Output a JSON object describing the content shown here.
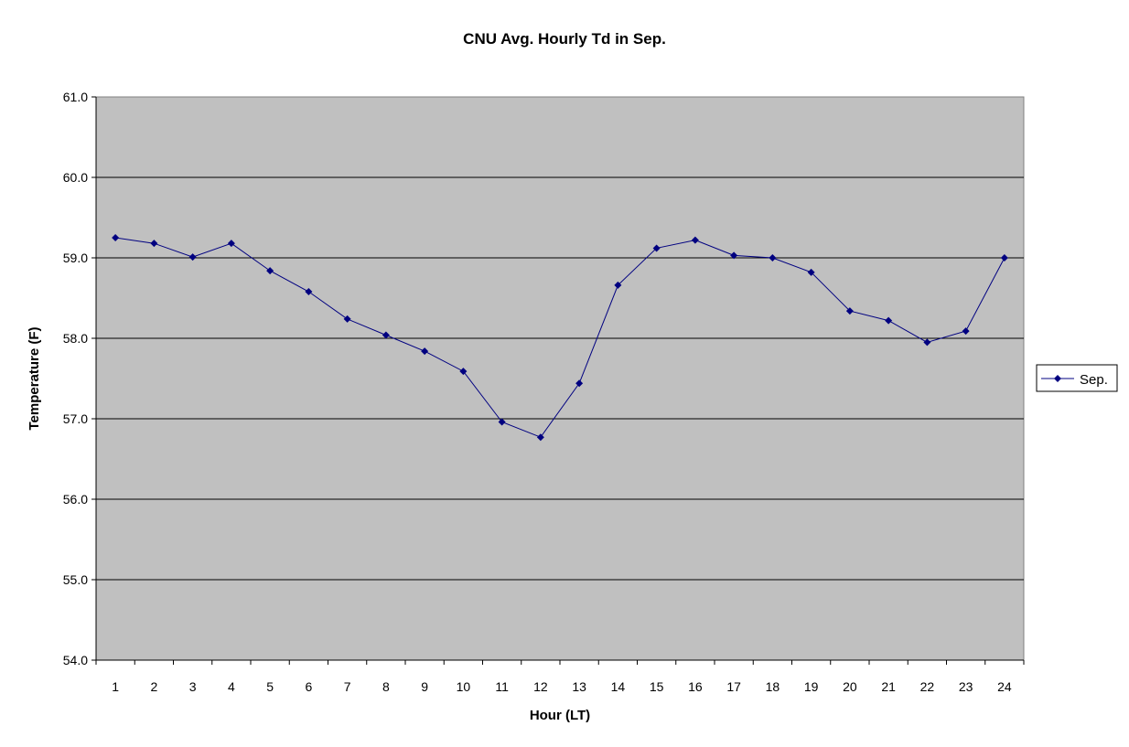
{
  "chart_data": {
    "type": "line",
    "title": "CNU Avg. Hourly Td in Sep.",
    "xlabel": "Hour (LT)",
    "ylabel": "Temperature (F)",
    "categories": [
      "1",
      "2",
      "3",
      "4",
      "5",
      "6",
      "7",
      "8",
      "9",
      "10",
      "11",
      "12",
      "13",
      "14",
      "15",
      "16",
      "17",
      "18",
      "19",
      "20",
      "21",
      "22",
      "23",
      "24"
    ],
    "ylim": [
      54.0,
      61.0
    ],
    "ytick_step": 1.0,
    "ytick_labels": [
      "54.0",
      "55.0",
      "56.0",
      "57.0",
      "58.0",
      "59.0",
      "60.0",
      "61.0"
    ],
    "grid": "horizontal",
    "legend_position": "right",
    "plot_background": "#c0c0c0",
    "series": [
      {
        "name": "Sep.",
        "color": "#000080",
        "marker": "diamond",
        "values": [
          59.25,
          59.18,
          59.01,
          59.18,
          58.84,
          58.58,
          58.24,
          58.04,
          57.84,
          57.59,
          56.96,
          56.77,
          57.44,
          58.66,
          59.12,
          59.22,
          59.03,
          59.0,
          58.82,
          58.34,
          58.22,
          57.95,
          58.09,
          59.0
        ]
      }
    ]
  }
}
